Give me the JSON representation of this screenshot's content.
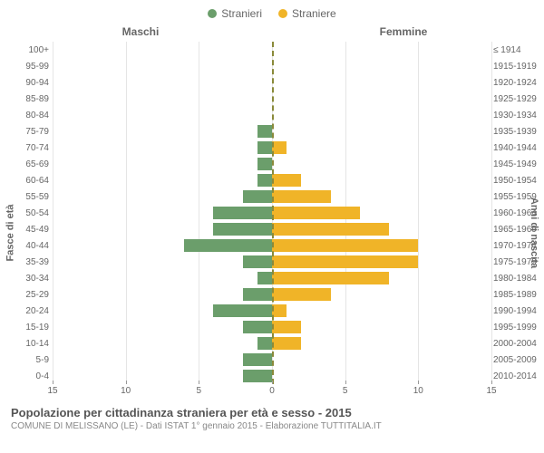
{
  "chart": {
    "type": "population-pyramid",
    "legend": {
      "male": {
        "label": "Stranieri",
        "color": "#6b9e6b"
      },
      "female": {
        "label": "Straniere",
        "color": "#f0b428"
      }
    },
    "headers": {
      "left": "Maschi",
      "right": "Femmine"
    },
    "y_axis_left_title": "Fasce di età",
    "y_axis_right_title": "Anni di nascita",
    "x_axis": {
      "min": -15,
      "max": 15,
      "step": 5,
      "ticks": [
        15,
        10,
        5,
        0,
        5,
        10,
        15
      ],
      "tick_positions_pct": [
        0,
        16.67,
        33.33,
        50,
        66.67,
        83.33,
        100
      ]
    },
    "grid_color": "#e5e5e5",
    "zero_line_color": "#8a8a3a",
    "background": "#ffffff",
    "rows": [
      {
        "age": "100+",
        "birth": "≤ 1914",
        "m": 0,
        "f": 0
      },
      {
        "age": "95-99",
        "birth": "1915-1919",
        "m": 0,
        "f": 0
      },
      {
        "age": "90-94",
        "birth": "1920-1924",
        "m": 0,
        "f": 0
      },
      {
        "age": "85-89",
        "birth": "1925-1929",
        "m": 0,
        "f": 0
      },
      {
        "age": "80-84",
        "birth": "1930-1934",
        "m": 0,
        "f": 0
      },
      {
        "age": "75-79",
        "birth": "1935-1939",
        "m": 1,
        "f": 0
      },
      {
        "age": "70-74",
        "birth": "1940-1944",
        "m": 1,
        "f": 1
      },
      {
        "age": "65-69",
        "birth": "1945-1949",
        "m": 1,
        "f": 0
      },
      {
        "age": "60-64",
        "birth": "1950-1954",
        "m": 1,
        "f": 2
      },
      {
        "age": "55-59",
        "birth": "1955-1959",
        "m": 2,
        "f": 4
      },
      {
        "age": "50-54",
        "birth": "1960-1964",
        "m": 4,
        "f": 6
      },
      {
        "age": "45-49",
        "birth": "1965-1969",
        "m": 4,
        "f": 8
      },
      {
        "age": "40-44",
        "birth": "1970-1974",
        "m": 6,
        "f": 10
      },
      {
        "age": "35-39",
        "birth": "1975-1979",
        "m": 2,
        "f": 10
      },
      {
        "age": "30-34",
        "birth": "1980-1984",
        "m": 1,
        "f": 8
      },
      {
        "age": "25-29",
        "birth": "1985-1989",
        "m": 2,
        "f": 4
      },
      {
        "age": "20-24",
        "birth": "1990-1994",
        "m": 4,
        "f": 1
      },
      {
        "age": "15-19",
        "birth": "1995-1999",
        "m": 2,
        "f": 2
      },
      {
        "age": "10-14",
        "birth": "2000-2004",
        "m": 1,
        "f": 2
      },
      {
        "age": "5-9",
        "birth": "2005-2009",
        "m": 2,
        "f": 0
      },
      {
        "age": "0-4",
        "birth": "2010-2014",
        "m": 2,
        "f": 0
      }
    ]
  },
  "caption": {
    "title": "Popolazione per cittadinanza straniera per età e sesso - 2015",
    "subtitle": "COMUNE DI MELISSANO (LE) - Dati ISTAT 1° gennaio 2015 - Elaborazione TUTTITALIA.IT"
  }
}
